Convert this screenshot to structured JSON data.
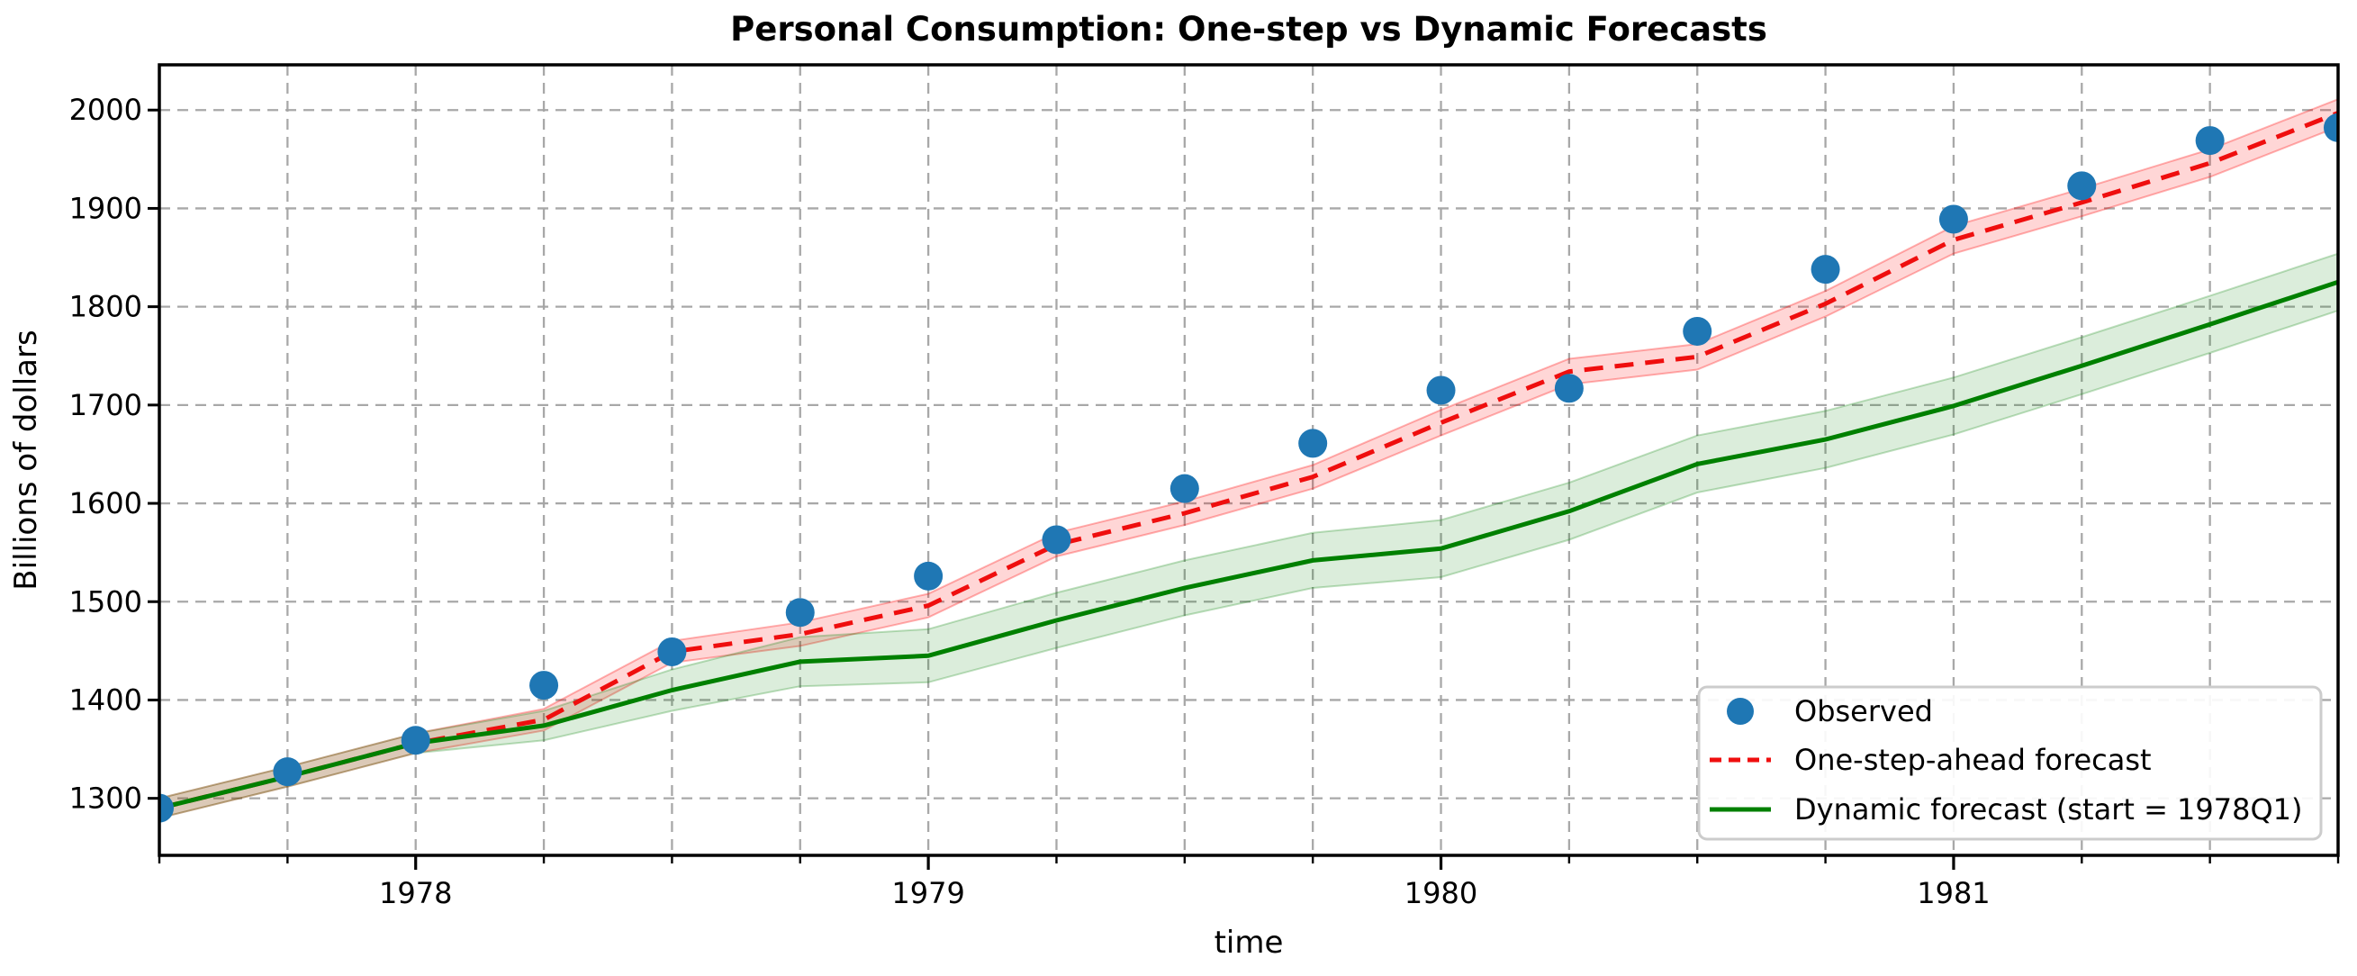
{
  "figure": {
    "title": "Personal Consumption: One-step vs Dynamic Forecasts",
    "xlabel": "time",
    "ylabel": "Billions of dollars"
  },
  "legend": {
    "position": "lower right",
    "items": [
      {
        "label": "Observed",
        "type": "marker",
        "icon": "blue-dot-marker",
        "color": "#1f77b4"
      },
      {
        "label": "One-step-ahead forecast",
        "type": "dashed-line",
        "icon": "red-dashed-line-sample",
        "color": "#ef0e0e"
      },
      {
        "label": "Dynamic forecast (start = 1978Q1)",
        "type": "solid-line",
        "icon": "green-line-sample",
        "color": "#008000"
      }
    ]
  },
  "chart_data": {
    "type": "line",
    "title": "Personal Consumption: One-step vs Dynamic Forecasts",
    "xlabel": "time",
    "ylabel": "Billions of dollars",
    "grid": true,
    "legend_position": "lower right",
    "x_categories": [
      "1977Q3",
      "1977Q4",
      "1978Q1",
      "1978Q2",
      "1978Q3",
      "1978Q4",
      "1979Q1",
      "1979Q2",
      "1979Q3",
      "1979Q4",
      "1980Q1",
      "1980Q2",
      "1980Q3",
      "1980Q4",
      "1981Q1",
      "1981Q2",
      "1981Q3",
      "1981Q4"
    ],
    "x_year_ticks": [
      {
        "label": "1978",
        "quarter_index": 2
      },
      {
        "label": "1979",
        "quarter_index": 6
      },
      {
        "label": "1980",
        "quarter_index": 10
      },
      {
        "label": "1981",
        "quarter_index": 14
      }
    ],
    "y_ticks": [
      1300,
      1400,
      1500,
      1600,
      1700,
      1800,
      1900,
      2000
    ],
    "ylim": [
      1242,
      2046
    ],
    "series": [
      {
        "name": "Observed",
        "style": "scatter",
        "color": "#1f77b4",
        "values": [
          1290,
          1327,
          1359,
          1415,
          1449,
          1489,
          1526,
          1563,
          1615,
          1661,
          1715,
          1717,
          1775,
          1838,
          1889,
          1923,
          1969,
          1982
        ]
      },
      {
        "name": "One-step-ahead forecast",
        "style": "dashed",
        "color": "#ef0e0e",
        "band_color": "#ff0000",
        "band_opacity": 0.16,
        "values": [
          1290,
          1322,
          1356,
          1380,
          1449,
          1467,
          1496,
          1558,
          1590,
          1627,
          1682,
          1734,
          1749,
          1803,
          1868,
          1906,
          1946,
          1997
        ],
        "ci_halfwidth": [
          10,
          10,
          10,
          11,
          11,
          12,
          12,
          12,
          12,
          12,
          13,
          13,
          13,
          13,
          14,
          14,
          14,
          14
        ]
      },
      {
        "name": "Dynamic forecast (start = 1978Q1)",
        "style": "solid",
        "color": "#008000",
        "band_color": "#008000",
        "band_opacity": 0.14,
        "values": [
          1290,
          1322,
          1356,
          1374,
          1410,
          1439,
          1445,
          1481,
          1514,
          1542,
          1554,
          1592,
          1640,
          1665,
          1699,
          1740,
          1782,
          1825
        ],
        "ci_halfwidth": [
          10,
          10,
          10,
          15,
          21,
          25,
          27,
          28,
          28,
          28,
          29,
          29,
          29,
          29,
          29,
          29,
          29,
          29
        ]
      }
    ]
  }
}
